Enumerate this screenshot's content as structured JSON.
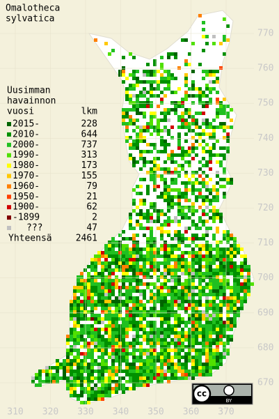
{
  "title": [
    "Omalotheca",
    "sylvatica"
  ],
  "legend": {
    "header": [
      "Uusimman",
      "havainnon",
      "vuosi"
    ],
    "count_header": "lkm",
    "items": [
      {
        "label": "2015-",
        "color": "#006400",
        "count": 228
      },
      {
        "label": "2010-",
        "color": "#009000",
        "count": 644
      },
      {
        "label": "2000-",
        "color": "#20c020",
        "count": 737
      },
      {
        "label": "1990-",
        "color": "#50e000",
        "count": 313
      },
      {
        "label": "1980-",
        "color": "#ffff00",
        "count": 173
      },
      {
        "label": "1970-",
        "color": "#ffc800",
        "count": 155
      },
      {
        "label": "1960-",
        "color": "#ff8000",
        "count": 79
      },
      {
        "label": "1950-",
        "color": "#ff4000",
        "count": 21
      },
      {
        "label": "1900-",
        "color": "#d00000",
        "count": 62
      },
      {
        "label": "-1899",
        "color": "#800000",
        "count": 2
      },
      {
        "label": "???",
        "color": "#c0c0c0",
        "count": 47
      }
    ],
    "total_label": "Yhteensä",
    "total": 2461
  },
  "y_labels": [
    770,
    760,
    750,
    740,
    730,
    720,
    710,
    700,
    690,
    680,
    670
  ],
  "x_labels": [
    310,
    320,
    330,
    340,
    350,
    360,
    370
  ],
  "license": {
    "cc": "cc",
    "by": "BY"
  }
}
